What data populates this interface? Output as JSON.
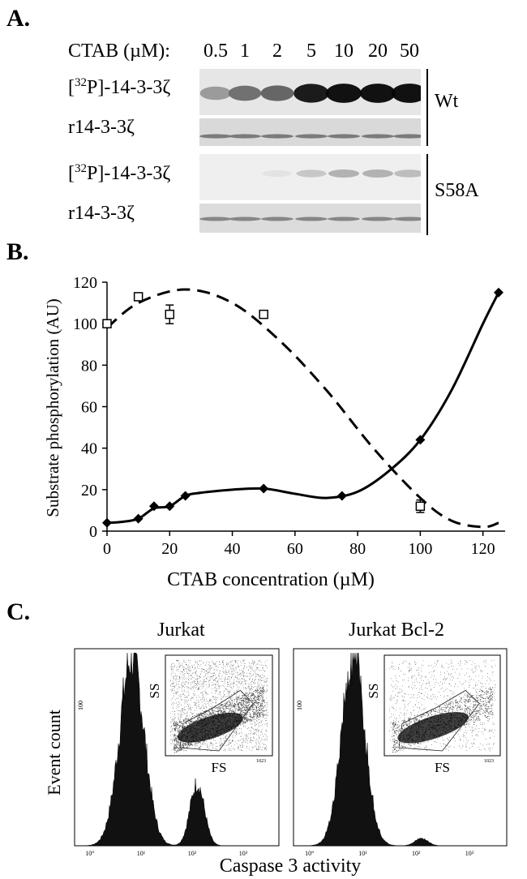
{
  "panel_a": {
    "letter": "A.",
    "ctab_label": "CTAB (µM):",
    "concentrations": [
      "0.5",
      "1",
      "2",
      "5",
      "10",
      "20",
      "50"
    ],
    "rows": [
      {
        "label_pre": "[",
        "label_sup": "32",
        "label_post": "P]-14-3-3ζ"
      },
      {
        "label_pre": "r14-3-3ζ",
        "label_sup": "",
        "label_post": ""
      },
      {
        "label_pre": "[",
        "label_sup": "32",
        "label_post": "P]-14-3-3ζ"
      },
      {
        "label_pre": "r14-3-3ζ",
        "label_sup": "",
        "label_post": ""
      }
    ],
    "groups": [
      "Wt",
      "S58A"
    ],
    "band_intensity": {
      "wt_phospho": [
        0.35,
        0.55,
        0.6,
        0.95,
        1.0,
        1.0,
        1.0
      ],
      "wt_total": [
        0.5,
        0.5,
        0.5,
        0.5,
        0.5,
        0.5,
        0.5
      ],
      "s58a_phospho": [
        0.0,
        0.0,
        0.02,
        0.15,
        0.25,
        0.25,
        0.2
      ],
      "s58a_total": [
        0.45,
        0.45,
        0.45,
        0.45,
        0.45,
        0.45,
        0.45
      ]
    }
  },
  "panel_b": {
    "letter": "B.",
    "chart_data": {
      "type": "line",
      "xlabel": "CTAB concentration (µM)",
      "ylabel": "Substrate phosphorylation (AU)",
      "xlim": [
        0,
        125
      ],
      "ylim": [
        0,
        120
      ],
      "xticks": [
        "0",
        "20",
        "40",
        "60",
        "80",
        "100",
        "120"
      ],
      "yticks": [
        "0",
        "20",
        "40",
        "60",
        "80",
        "100",
        "120"
      ],
      "series": [
        {
          "style": "solid",
          "marker": "filled-diamond",
          "x": [
            0,
            10,
            15,
            20,
            25,
            50,
            75,
            100,
            125
          ],
          "y": [
            4,
            6,
            12,
            12,
            17,
            20.5,
            17,
            44,
            115
          ]
        },
        {
          "style": "dashed",
          "marker": "open-square",
          "x": [
            0,
            10,
            20,
            50,
            100
          ],
          "y": [
            100,
            113,
            104.5,
            104.5,
            12
          ],
          "err": [
            1,
            0,
            4.5,
            1.5,
            3
          ]
        }
      ],
      "solid_curve": [
        [
          0,
          4
        ],
        [
          5,
          4.5
        ],
        [
          10,
          6
        ],
        [
          15,
          11
        ],
        [
          20,
          12
        ],
        [
          25,
          17
        ],
        [
          30,
          18.5
        ],
        [
          40,
          20
        ],
        [
          50,
          20.5
        ],
        [
          60,
          18
        ],
        [
          70,
          16
        ],
        [
          80,
          19
        ],
        [
          90,
          29
        ],
        [
          100,
          44
        ],
        [
          110,
          68
        ],
        [
          120,
          100
        ],
        [
          125,
          115
        ]
      ],
      "dashed_curve": [
        [
          0,
          98
        ],
        [
          10,
          110
        ],
        [
          25,
          116.5
        ],
        [
          40,
          110
        ],
        [
          55,
          92
        ],
        [
          70,
          68
        ],
        [
          85,
          40
        ],
        [
          100,
          16
        ],
        [
          110,
          5
        ],
        [
          120,
          2
        ],
        [
          125,
          4
        ]
      ]
    }
  },
  "panel_c": {
    "letter": "C.",
    "ylabel": "Event count",
    "xlabel": "Caspase 3 activity",
    "plots": [
      {
        "title": "Jurkat",
        "ytick": "100",
        "peaks": [
          [
            0.28,
            1.0,
            0.06
          ],
          [
            0.6,
            0.33,
            0.035
          ]
        ]
      },
      {
        "title": "Jurkat Bcl-2",
        "ytick": "100",
        "peaks": [
          [
            0.28,
            0.98,
            0.055
          ],
          [
            0.6,
            0.04,
            0.03
          ]
        ]
      }
    ],
    "x_ticks": [
      "10°",
      "10¹",
      "10²",
      "10³"
    ],
    "inset": {
      "xlabel": "FS",
      "ylabel": "SS",
      "gate": "G",
      "tick": "1023"
    }
  }
}
